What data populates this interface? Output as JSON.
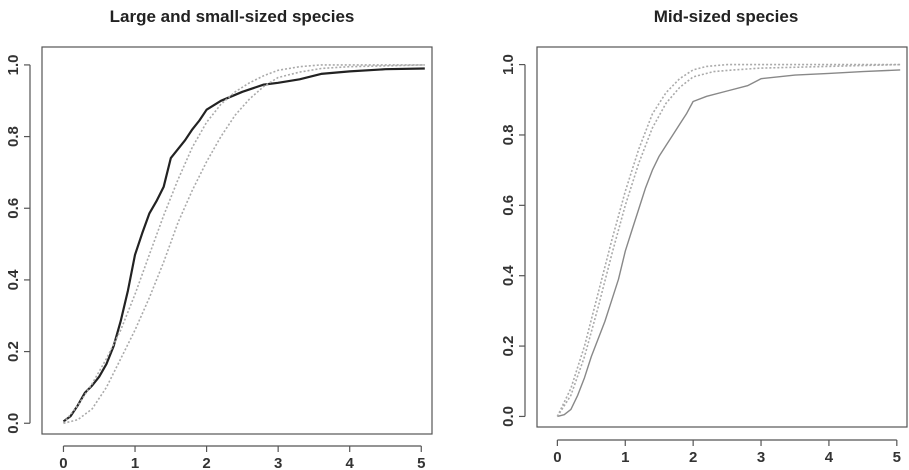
{
  "chart_data": [
    {
      "type": "line",
      "title": "Large and small-sized species",
      "xlabel": "",
      "ylabel": "",
      "xlim": [
        -0.3,
        5.15
      ],
      "ylim": [
        -0.03,
        1.05
      ],
      "xticks": [
        "0",
        "1",
        "2",
        "3",
        "4",
        "5"
      ],
      "yticks": [
        "0.0",
        "0.2",
        "0.4",
        "0.6",
        "0.8",
        "1.0"
      ],
      "grid": false,
      "series": [
        {
          "color": "#222222",
          "style": "solid",
          "points": [
            [
              0,
              0.005
            ],
            [
              0.1,
              0.02
            ],
            [
              0.2,
              0.05
            ],
            [
              0.3,
              0.085
            ],
            [
              0.4,
              0.105
            ],
            [
              0.5,
              0.13
            ],
            [
              0.6,
              0.165
            ],
            [
              0.7,
              0.215
            ],
            [
              0.8,
              0.285
            ],
            [
              0.9,
              0.37
            ],
            [
              1.0,
              0.47
            ],
            [
              1.1,
              0.53
            ],
            [
              1.2,
              0.585
            ],
            [
              1.3,
              0.62
            ],
            [
              1.4,
              0.66
            ],
            [
              1.5,
              0.74
            ],
            [
              1.6,
              0.765
            ],
            [
              1.7,
              0.79
            ],
            [
              1.8,
              0.82
            ],
            [
              1.9,
              0.845
            ],
            [
              2.0,
              0.875
            ],
            [
              2.2,
              0.9
            ],
            [
              2.5,
              0.925
            ],
            [
              2.8,
              0.945
            ],
            [
              3.0,
              0.95
            ],
            [
              3.3,
              0.96
            ],
            [
              3.6,
              0.975
            ],
            [
              4.0,
              0.982
            ],
            [
              4.5,
              0.988
            ],
            [
              5.05,
              0.99
            ]
          ]
        },
        {
          "color": "#aaaaaa",
          "style": "dotted",
          "points": [
            [
              0,
              0.0
            ],
            [
              0.2,
              0.05
            ],
            [
              0.4,
              0.11
            ],
            [
              0.6,
              0.18
            ],
            [
              0.8,
              0.26
            ],
            [
              1.0,
              0.36
            ],
            [
              1.2,
              0.47
            ],
            [
              1.4,
              0.58
            ],
            [
              1.6,
              0.68
            ],
            [
              1.8,
              0.77
            ],
            [
              2.0,
              0.84
            ],
            [
              2.2,
              0.89
            ],
            [
              2.4,
              0.925
            ],
            [
              2.6,
              0.95
            ],
            [
              2.8,
              0.97
            ],
            [
              3.0,
              0.985
            ],
            [
              3.3,
              0.995
            ],
            [
              3.6,
              1.0
            ],
            [
              4.0,
              1.0
            ],
            [
              5.05,
              1.0
            ]
          ]
        },
        {
          "color": "#aaaaaa",
          "style": "dotted",
          "points": [
            [
              0,
              0.0
            ],
            [
              0.2,
              0.01
            ],
            [
              0.4,
              0.04
            ],
            [
              0.6,
              0.1
            ],
            [
              0.8,
              0.18
            ],
            [
              1.0,
              0.26
            ],
            [
              1.2,
              0.35
            ],
            [
              1.4,
              0.45
            ],
            [
              1.6,
              0.56
            ],
            [
              1.8,
              0.65
            ],
            [
              2.0,
              0.73
            ],
            [
              2.2,
              0.8
            ],
            [
              2.4,
              0.86
            ],
            [
              2.6,
              0.905
            ],
            [
              2.8,
              0.94
            ],
            [
              3.0,
              0.965
            ],
            [
              3.3,
              0.98
            ],
            [
              3.6,
              0.99
            ],
            [
              4.0,
              0.995
            ],
            [
              5.05,
              1.0
            ]
          ]
        }
      ]
    },
    {
      "type": "line",
      "title": "Mid-sized species",
      "xlabel": "",
      "ylabel": "",
      "xlim": [
        -0.3,
        5.15
      ],
      "ylim": [
        -0.03,
        1.05
      ],
      "xticks": [
        "0",
        "1",
        "2",
        "3",
        "4",
        "5"
      ],
      "yticks": [
        "0.0",
        "0.2",
        "0.4",
        "0.6",
        "0.8",
        "1.0"
      ],
      "grid": false,
      "series": [
        {
          "color": "#888888",
          "style": "solid",
          "points": [
            [
              0,
              0.0
            ],
            [
              0.1,
              0.005
            ],
            [
              0.2,
              0.02
            ],
            [
              0.3,
              0.06
            ],
            [
              0.4,
              0.11
            ],
            [
              0.5,
              0.17
            ],
            [
              0.6,
              0.22
            ],
            [
              0.7,
              0.27
            ],
            [
              0.8,
              0.33
            ],
            [
              0.9,
              0.39
            ],
            [
              1.0,
              0.47
            ],
            [
              1.1,
              0.53
            ],
            [
              1.2,
              0.59
            ],
            [
              1.3,
              0.65
            ],
            [
              1.4,
              0.7
            ],
            [
              1.5,
              0.74
            ],
            [
              1.6,
              0.77
            ],
            [
              1.7,
              0.8
            ],
            [
              1.8,
              0.83
            ],
            [
              1.9,
              0.86
            ],
            [
              2.0,
              0.895
            ],
            [
              2.2,
              0.91
            ],
            [
              2.5,
              0.925
            ],
            [
              2.8,
              0.94
            ],
            [
              3.0,
              0.96
            ],
            [
              3.5,
              0.97
            ],
            [
              4.0,
              0.975
            ],
            [
              4.5,
              0.98
            ],
            [
              5.05,
              0.985
            ]
          ]
        },
        {
          "color": "#aaaaaa",
          "style": "dotted",
          "points": [
            [
              0,
              0.0
            ],
            [
              0.2,
              0.08
            ],
            [
              0.4,
              0.2
            ],
            [
              0.6,
              0.35
            ],
            [
              0.8,
              0.5
            ],
            [
              1.0,
              0.64
            ],
            [
              1.2,
              0.76
            ],
            [
              1.4,
              0.86
            ],
            [
              1.6,
              0.92
            ],
            [
              1.8,
              0.96
            ],
            [
              2.0,
              0.985
            ],
            [
              2.2,
              0.995
            ],
            [
              2.5,
              1.0
            ],
            [
              3.0,
              1.0
            ],
            [
              4.0,
              1.0
            ],
            [
              5.05,
              1.0
            ]
          ]
        },
        {
          "color": "#aaaaaa",
          "style": "dotted",
          "points": [
            [
              0,
              0.0
            ],
            [
              0.2,
              0.06
            ],
            [
              0.4,
              0.17
            ],
            [
              0.6,
              0.31
            ],
            [
              0.8,
              0.46
            ],
            [
              1.0,
              0.6
            ],
            [
              1.2,
              0.72
            ],
            [
              1.4,
              0.82
            ],
            [
              1.6,
              0.89
            ],
            [
              1.8,
              0.935
            ],
            [
              2.0,
              0.965
            ],
            [
              2.3,
              0.98
            ],
            [
              2.6,
              0.985
            ],
            [
              3.0,
              0.99
            ],
            [
              4.0,
              0.995
            ],
            [
              5.05,
              1.0
            ]
          ]
        }
      ]
    }
  ]
}
